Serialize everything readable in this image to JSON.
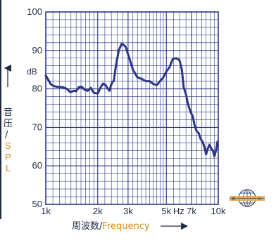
{
  "chart_data": {
    "type": "line",
    "x_scale": "log",
    "xlim": [
      1000,
      10000
    ],
    "ylim": [
      50,
      100
    ],
    "yticks": [
      {
        "label": "100",
        "value": 100
      },
      {
        "label": "90",
        "value": 90
      },
      {
        "label": "80",
        "value": 80
      },
      {
        "label": "70",
        "value": 70
      },
      {
        "label": "60",
        "value": 60
      },
      {
        "label": "50",
        "value": 50
      }
    ],
    "xticks": [
      {
        "label": "1k",
        "value": 1000
      },
      {
        "label": "2k",
        "value": 2000
      },
      {
        "label": "3k",
        "value": 3000
      },
      {
        "label": "5k",
        "value": 5000
      },
      {
        "label": "7k",
        "value": 7000
      },
      {
        "label": "10k",
        "value": 10000
      }
    ],
    "x_unit_label": "Hz",
    "x_unit_value": 5900,
    "y_unit_label": "dB",
    "ylabel_cn": [
      "音",
      "压",
      "/"
    ],
    "ylabel_en": [
      "S",
      "P",
      "L"
    ],
    "xlabel_cn": "周波数/",
    "xlabel_en": "Frequency",
    "grid": true,
    "line_color": "#2b3585",
    "grid_color": "#2b3585",
    "series": [
      {
        "x": [
          1000,
          1030,
          1070,
          1120,
          1180,
          1250,
          1330,
          1380,
          1420,
          1460,
          1500,
          1560,
          1610,
          1680,
          1750,
          1820,
          1900,
          2000,
          2080,
          2150,
          2220,
          2280,
          2340,
          2380,
          2430,
          2480,
          2550,
          2650,
          2760,
          2900,
          3050,
          3200,
          3400,
          3600,
          3800,
          4000,
          4200,
          4400,
          4600,
          4800,
          5000,
          5200,
          5450,
          5700,
          5950,
          6150,
          6300,
          6500,
          6700,
          6900,
          7100,
          7300,
          7500,
          7700,
          7900,
          8100,
          8300,
          8500,
          8700,
          8900,
          9100,
          9300,
          9500,
          9700,
          9900
        ],
        "y": [
          83.5,
          82.5,
          81.2,
          80.7,
          80.5,
          80.5,
          80.0,
          79.2,
          79.3,
          79.5,
          79.4,
          80.5,
          80.6,
          79.8,
          79.5,
          80.3,
          79.0,
          78.8,
          80.4,
          81.4,
          81.0,
          80.2,
          79.5,
          80.7,
          81.8,
          82.0,
          86.0,
          90.0,
          91.8,
          91.0,
          88.0,
          85.0,
          83.0,
          82.6,
          82.0,
          82.0,
          81.3,
          81.0,
          82.0,
          83.0,
          84.5,
          85.5,
          87.8,
          88.0,
          87.5,
          85.0,
          80.5,
          78.5,
          75.8,
          74.0,
          73.0,
          70.5,
          69.0,
          68.5,
          67.0,
          66.3,
          65.0,
          63.0,
          64.5,
          65.5,
          64.5,
          64.0,
          62.5,
          64.0,
          66.3
        ]
      }
    ]
  },
  "logo": {
    "letter_left": "B",
    "letter_right": "K"
  }
}
